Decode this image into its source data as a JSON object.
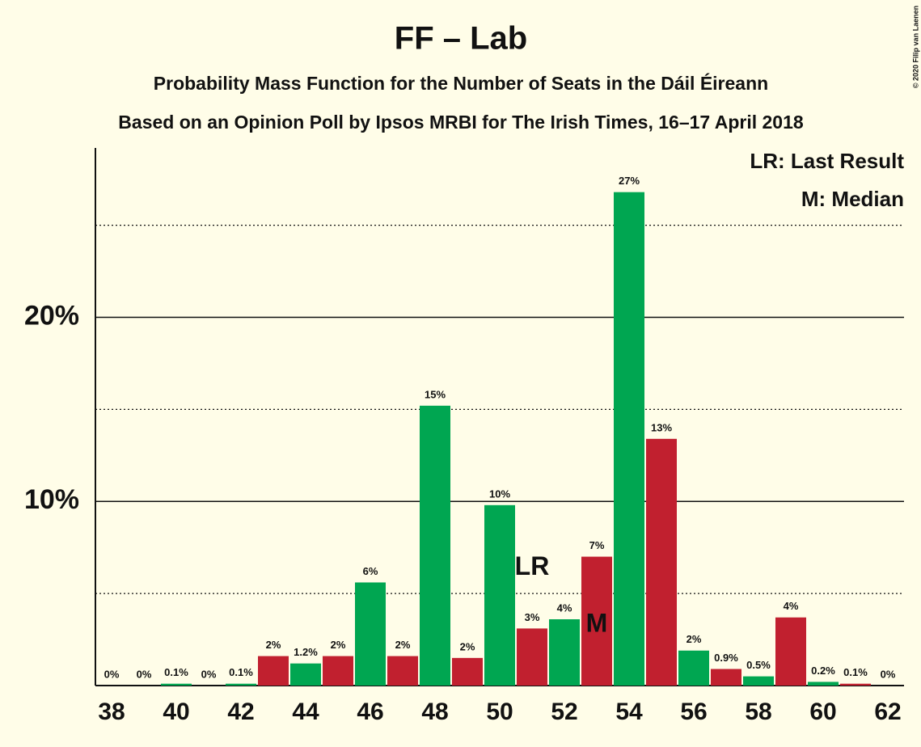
{
  "chart_data": {
    "type": "bar",
    "title": "FF – Lab",
    "subtitle": "Probability Mass Function for the Number of Seats in the Dáil Éireann",
    "subtitle2": "Based on an Opinion Poll by Ipsos MRBI for The Irish Times, 16–17 April 2018",
    "x": [
      38,
      39,
      40,
      41,
      42,
      43,
      44,
      45,
      46,
      47,
      48,
      49,
      50,
      51,
      52,
      53,
      54,
      55,
      56,
      57,
      58,
      59,
      60,
      61,
      62
    ],
    "values": [
      0,
      0,
      0.1,
      0,
      0.1,
      1.6,
      1.2,
      1.6,
      5.6,
      1.6,
      15.2,
      1.5,
      9.8,
      3.1,
      3.6,
      7.0,
      26.8,
      13.4,
      1.9,
      0.9,
      0.5,
      3.7,
      0.2,
      0.1,
      0
    ],
    "value_labels": [
      "0%",
      "0%",
      "0.1%",
      "0%",
      "0.1%",
      "2%",
      "1.2%",
      "2%",
      "6%",
      "2%",
      "15%",
      "2%",
      "10%",
      "3%",
      "4%",
      "7%",
      "27%",
      "13%",
      "2%",
      "0.9%",
      "0.5%",
      "4%",
      "0.2%",
      "0.1%",
      "0%"
    ],
    "colors": [
      "#00a651",
      "#c1202f",
      "#00a651",
      "#c1202f",
      "#00a651",
      "#c1202f",
      "#00a651",
      "#c1202f",
      "#00a651",
      "#c1202f",
      "#00a651",
      "#c1202f",
      "#00a651",
      "#c1202f",
      "#00a651",
      "#c1202f",
      "#00a651",
      "#c1202f",
      "#00a651",
      "#c1202f",
      "#00a651",
      "#c1202f",
      "#00a651",
      "#c1202f",
      "#00a651"
    ],
    "xlim": [
      37.5,
      62.5
    ],
    "xticks": [
      38,
      40,
      42,
      44,
      46,
      48,
      50,
      52,
      54,
      56,
      58,
      60,
      62
    ],
    "ylim": [
      0,
      29.2
    ],
    "yticks": [
      {
        "value": 10,
        "label": "10%"
      },
      {
        "value": 20,
        "label": "20%"
      }
    ],
    "minor_yticks": [
      5,
      15,
      25
    ],
    "grid": true,
    "annotations": [
      {
        "text": "LR",
        "x": 51
      },
      {
        "text": "M",
        "x": 53
      }
    ],
    "legend_notes": [
      "LR: Last Result",
      "M: Median"
    ],
    "credit": "© 2020 Filip van Laenen"
  }
}
